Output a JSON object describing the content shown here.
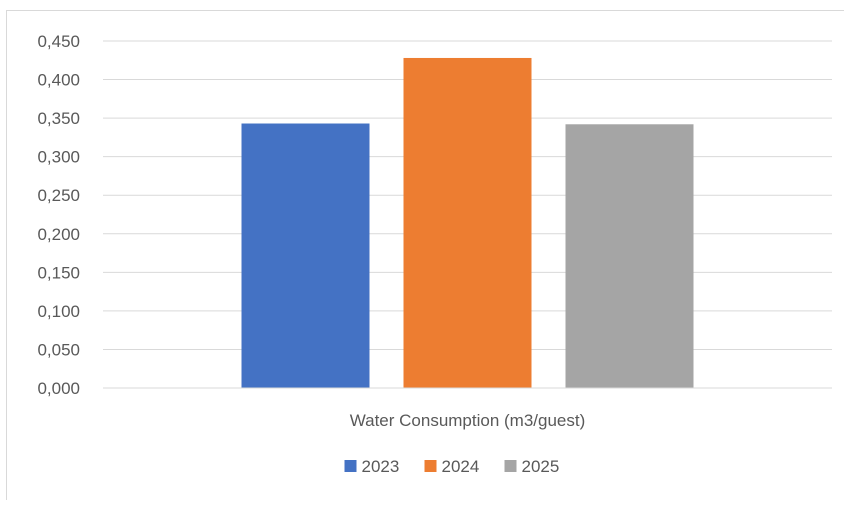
{
  "chart_data": {
    "type": "bar",
    "categories": [
      "Water Consumption (m3/guest)"
    ],
    "series": [
      {
        "name": "2023",
        "values": [
          0.343
        ],
        "color": "#4472C4"
      },
      {
        "name": "2024",
        "values": [
          0.428
        ],
        "color": "#ED7D31"
      },
      {
        "name": "2025",
        "values": [
          0.342
        ],
        "color": "#A5A5A5"
      }
    ],
    "title": "",
    "xlabel": "",
    "ylabel": "",
    "ylim": [
      0,
      0.45
    ],
    "y_ticks": [
      "0,000",
      "0,050",
      "0,100",
      "0,150",
      "0,200",
      "0,250",
      "0,300",
      "0,350",
      "0,400",
      "0,450"
    ],
    "grid": true,
    "legend_position": "bottom"
  }
}
